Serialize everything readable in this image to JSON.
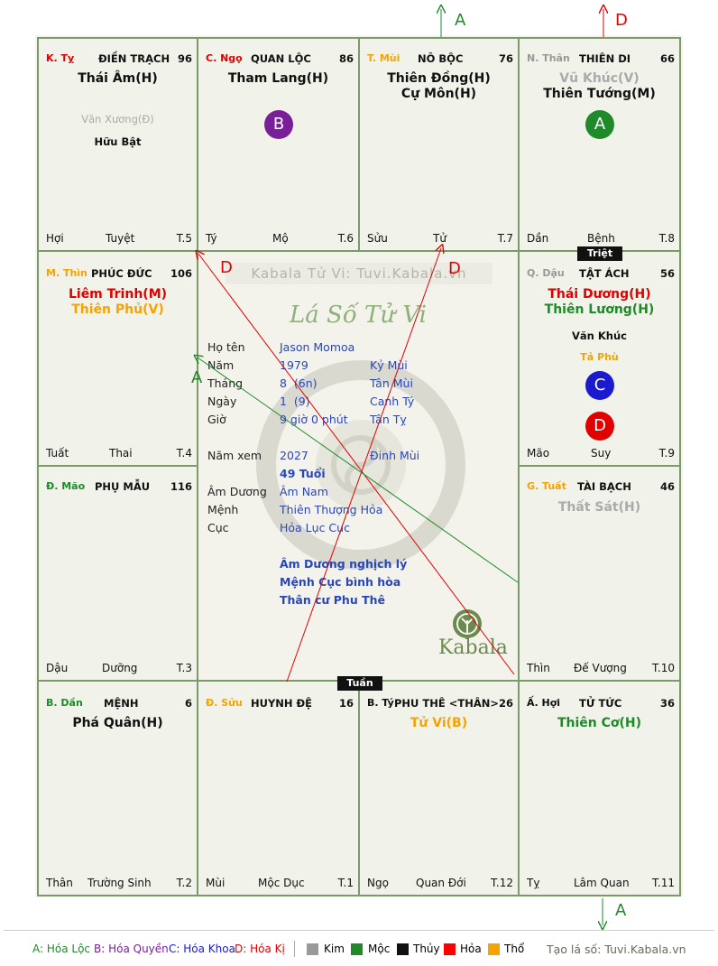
{
  "watermark": "Kabala Tử Vi: Tuvi.Kabala.vn",
  "chart_title": "Lá Số Tử Vi",
  "colors": {
    "kim": "#999999",
    "moc": "#1f8a2a",
    "thuy": "#111111",
    "hoa": "#ff0000",
    "tho": "#f5a300",
    "hoa_loc": "#1f8a2a",
    "hoa_quyen": "#7a1f9a",
    "hoa_khoa": "#1a1ad0",
    "hoa_ki": "#e00000",
    "border": "#7a9a6a"
  },
  "palaces": {
    "ty": {
      "branch": "K. Tỵ",
      "name": "ĐIỀN TRẠCH",
      "num": "96",
      "major": [
        "Thái Âm(H)"
      ],
      "minor": [
        "Văn Xương(Đ)",
        "Hữu Bật"
      ],
      "foot_left": "Hợi",
      "foot_mid": "Tuyệt",
      "foot_right": "T.5"
    },
    "ngo": {
      "branch": "C. Ngọ",
      "name": "QUAN LỘC",
      "num": "86",
      "major": [
        "Tham Lang(H)"
      ],
      "circle": "B",
      "foot_left": "Tý",
      "foot_mid": "Mộ",
      "foot_right": "T.6"
    },
    "mui": {
      "branch": "T. Mùi",
      "name": "NÔ BỘC",
      "num": "76",
      "major": [
        "Thiên Đồng(H)",
        "Cự Môn(H)"
      ],
      "foot_left": "Sửu",
      "foot_mid": "Tử",
      "foot_right": "T.7"
    },
    "than": {
      "branch": "N. Thân",
      "name": "THIÊN DI",
      "num": "66",
      "major": [
        "Vũ Khúc(V)",
        "Thiên Tướng(M)"
      ],
      "circle": "A",
      "foot_left": "Dần",
      "foot_mid": "Bệnh",
      "foot_right": "T.8"
    },
    "thin": {
      "branch": "M. Thìn",
      "name": "PHÚC ĐỨC",
      "num": "106",
      "major": [
        "Liêm Trinh(M)",
        "Thiên Phủ(V)"
      ],
      "foot_left": "Tuất",
      "foot_mid": "Thai",
      "foot_right": "T.4"
    },
    "dau": {
      "branch": "Q. Dậu",
      "name": "TẬT ÁCH",
      "num": "56",
      "major": [
        "Thái Dương(H)",
        "Thiên Lương(H)"
      ],
      "minor": [
        "Văn Khúc",
        "Tả Phù"
      ],
      "circles": [
        "C",
        "D"
      ],
      "foot_left": "Mão",
      "foot_mid": "Suy",
      "foot_right": "T.9"
    },
    "mao": {
      "branch": "Đ. Mão",
      "name": "PHỤ MẪU",
      "num": "116",
      "foot_left": "Dậu",
      "foot_mid": "Dưỡng",
      "foot_right": "T.3"
    },
    "tuat": {
      "branch": "G. Tuất",
      "name": "TÀI BẠCH",
      "num": "46",
      "major": [
        "Thất Sát(H)"
      ],
      "foot_left": "Thìn",
      "foot_mid": "Đế Vượng",
      "foot_right": "T.10"
    },
    "dan": {
      "branch": "B. Dần",
      "name": "MỆNH",
      "num": "6",
      "major": [
        "Phá Quân(H)"
      ],
      "foot_left": "Thân",
      "foot_mid": "Trường Sinh",
      "foot_right": "T.2"
    },
    "suu": {
      "branch": "Đ. Sửu",
      "name": "HUYNH ĐỆ",
      "num": "16",
      "foot_left": "Mùi",
      "foot_mid": "Mộc Dục",
      "foot_right": "T.1"
    },
    "ty2": {
      "branch": "B. Tý",
      "name": "PHU THÊ <THÂN>",
      "num": "26",
      "major": [
        "Tử Vi(B)"
      ],
      "foot_left": "Ngọ",
      "foot_mid": "Quan Đới",
      "foot_right": "T.12"
    },
    "hoi": {
      "branch": "Ấ. Hợi",
      "name": "TỬ TỨC",
      "num": "36",
      "major": [
        "Thiên Cơ(H)"
      ],
      "foot_left": "Tỵ",
      "foot_mid": "Lâm Quan",
      "foot_right": "T.11"
    }
  },
  "tags": {
    "triet": "Triệt",
    "tuan": "Tuần"
  },
  "info": {
    "ho_ten_label": "Họ tên",
    "ho_ten": "Jason Momoa",
    "nam_label": "Năm",
    "nam": "1979",
    "nam_can_chi": "Kỷ Mùi",
    "thang_label": "Tháng",
    "thang": "8  (6n)",
    "thang_can_chi": "Tân Mùi",
    "ngay_label": "Ngày",
    "ngay": "1  (9)",
    "ngay_can_chi": "Canh Tý",
    "gio_label": "Giờ",
    "gio": "9 giờ 0 phút",
    "gio_can_chi": "Tân Tỵ",
    "nam_xem_label": "Năm xem",
    "nam_xem": "2027",
    "nam_xem_can_chi": "Đinh Mùi",
    "tuoi": "49 Tuổi",
    "am_duong_label": "Âm Dương",
    "am_duong": "Âm Nam",
    "menh_label": "Mệnh",
    "menh": "Thiên Thượng Hỏa",
    "cuc_label": "Cục",
    "cuc": "Hỏa Lục Cục",
    "notes": [
      "Âm Dương nghịch lý",
      "Mệnh Cục bình hòa",
      "Thân cư Phu Thê"
    ]
  },
  "brand": "Kabala",
  "arrows": {
    "top_a": "A",
    "top_d": "D",
    "bottom_a": "A",
    "left_a": "A",
    "diag_d1": "D",
    "diag_d2": "D"
  },
  "legend": {
    "hoa_loc": "A: Hóa Lộc",
    "hoa_quyen": "B: Hóa Quyền",
    "hoa_khoa": "C: Hóa Khoa",
    "hoa_ki": "D: Hóa Kị",
    "kim": "Kim",
    "moc": "Mộc",
    "thuy": "Thủy",
    "hoa": "Hỏa",
    "tho": "Thổ",
    "credit": "Tạo lá số: Tuvi.Kabala.vn"
  }
}
